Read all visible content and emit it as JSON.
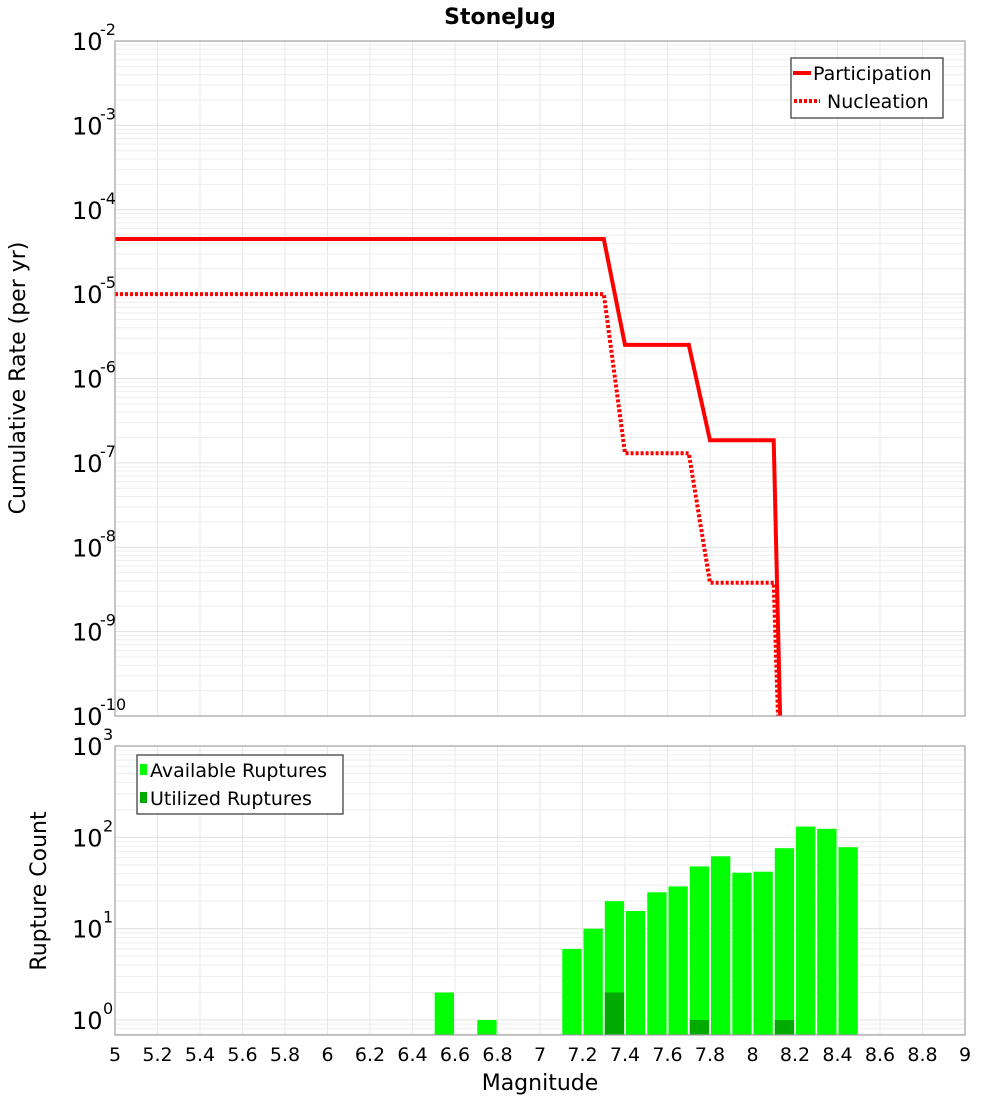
{
  "chart_data": [
    {
      "type": "line",
      "title": "StoneJug",
      "xlabel": "Magnitude",
      "ylabel": "Cumulative Rate (per yr)",
      "yscale": "log",
      "xlim": [
        5,
        9
      ],
      "ylim": [
        1e-10,
        0.01
      ],
      "grid": true,
      "legend_position": "top-right",
      "y_ticks": [
        {
          "value": 0.01,
          "base": "10",
          "exp": "-2"
        },
        {
          "value": 0.001,
          "base": "10",
          "exp": "-3"
        },
        {
          "value": 0.0001,
          "base": "10",
          "exp": "-4"
        },
        {
          "value": 1e-05,
          "base": "10",
          "exp": "-5"
        },
        {
          "value": 1e-06,
          "base": "10",
          "exp": "-6"
        },
        {
          "value": 1e-07,
          "base": "10",
          "exp": "-7"
        },
        {
          "value": 1e-08,
          "base": "10",
          "exp": "-8"
        },
        {
          "value": 1e-09,
          "base": "10",
          "exp": "-9"
        },
        {
          "value": 1e-10,
          "base": "10",
          "exp": "-10"
        }
      ],
      "series": [
        {
          "name": "Participation",
          "style": "solid",
          "color": "#ff0000",
          "x": [
            5.0,
            7.3,
            7.4,
            7.7,
            7.8,
            8.1,
            8.13
          ],
          "y": [
            4.5e-05,
            4.5e-05,
            2.5e-06,
            2.5e-06,
            1.85e-07,
            1.85e-07,
            1e-10
          ]
        },
        {
          "name": "Nucleation",
          "style": "dotted",
          "color": "#ff0000",
          "x": [
            5.0,
            7.3,
            7.4,
            7.7,
            7.8,
            8.1,
            8.12
          ],
          "y": [
            1e-05,
            1e-05,
            1.3e-07,
            1.3e-07,
            3.8e-09,
            3.8e-09,
            1e-10
          ]
        }
      ]
    },
    {
      "type": "bar",
      "title": "",
      "xlabel": "Magnitude",
      "ylabel": "Rupture Count",
      "yscale": "log",
      "xlim": [
        5,
        9
      ],
      "ylim": [
        0.8,
        1000
      ],
      "grid": true,
      "legend_position": "top-left",
      "x_ticks": [
        "5",
        "5.2",
        "5.4",
        "5.6",
        "5.8",
        "6",
        "6.2",
        "6.4",
        "6.6",
        "6.8",
        "7",
        "7.2",
        "7.4",
        "7.6",
        "7.8",
        "8",
        "8.2",
        "8.4",
        "8.6",
        "8.8",
        "9"
      ],
      "y_ticks": [
        {
          "value": 1000,
          "base": "10",
          "exp": "3"
        },
        {
          "value": 100,
          "base": "10",
          "exp": "2"
        },
        {
          "value": 10,
          "base": "10",
          "exp": "1"
        },
        {
          "value": 1,
          "base": "10",
          "exp": "0"
        }
      ],
      "bin_width": 0.1,
      "series": [
        {
          "name": "Available Ruptures",
          "color": "#00ff00",
          "x": [
            6.55,
            6.75,
            7.15,
            7.25,
            7.35,
            7.45,
            7.55,
            7.65,
            7.75,
            7.85,
            7.95,
            8.05,
            8.15,
            8.25,
            8.35,
            8.45
          ],
          "values": [
            2,
            1,
            6,
            10,
            20,
            15.6,
            25,
            29,
            48,
            62,
            41,
            42,
            76,
            131,
            124,
            78
          ]
        },
        {
          "name": "Utilized Ruptures",
          "color": "#00aa00",
          "x": [
            7.35,
            7.75,
            8.15
          ],
          "values": [
            2,
            1,
            1
          ]
        }
      ]
    }
  ]
}
